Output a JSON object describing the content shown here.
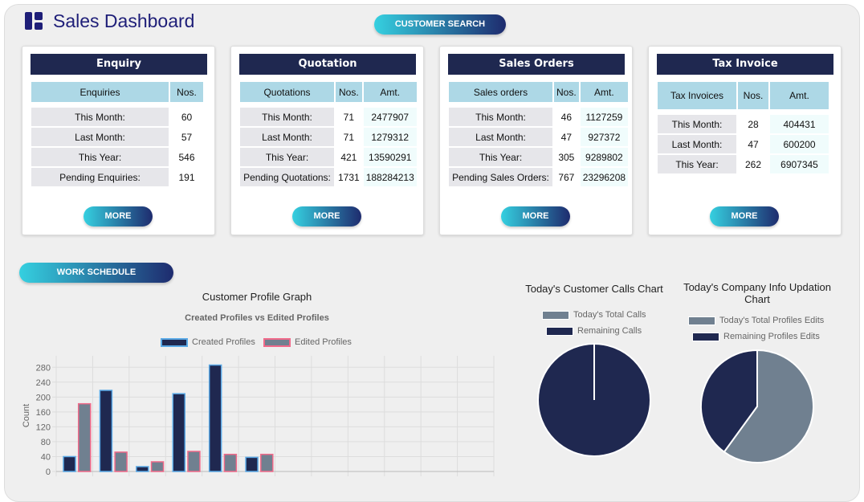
{
  "header": {
    "title": "Sales Dashboard",
    "customer_search": "CUSTOMER SEARCH",
    "icon": "dashboard-icon"
  },
  "colors": {
    "navy": "#1f2850",
    "gray": "#708090",
    "accent_from": "#35d0e0",
    "accent_to": "#1e2b6e",
    "header_cell": "#add8e6"
  },
  "cards": [
    {
      "title": "Enquiry",
      "columns": [
        "Enquiries",
        "Nos."
      ],
      "rows": [
        [
          "This Month:",
          "60"
        ],
        [
          "Last Month:",
          "57"
        ],
        [
          "This Year:",
          "546"
        ],
        [
          "Pending Enquiries:",
          "191"
        ]
      ],
      "more": "MORE"
    },
    {
      "title": "Quotation",
      "columns": [
        "Quotations",
        "Nos.",
        "Amt."
      ],
      "rows": [
        [
          "This Month:",
          "71",
          "2477907"
        ],
        [
          "Last Month:",
          "71",
          "1279312"
        ],
        [
          "This Year:",
          "421",
          "13590291"
        ],
        [
          "Pending Quotations:",
          "1731",
          "188284213"
        ]
      ],
      "more": "MORE"
    },
    {
      "title": "Sales Orders",
      "columns": [
        "Sales orders",
        "Nos.",
        "Amt."
      ],
      "rows": [
        [
          "This Month:",
          "46",
          "1127259"
        ],
        [
          "Last Month:",
          "47",
          "927372"
        ],
        [
          "This Year:",
          "305",
          "9289802"
        ],
        [
          "Pending Sales Orders:",
          "767",
          "23296208"
        ]
      ],
      "more": "MORE"
    },
    {
      "title": "Tax Invoice",
      "columns": [
        "Tax Invoices",
        "Nos.",
        "Amt."
      ],
      "rows": [
        [
          "This Month:",
          "28",
          "404431"
        ],
        [
          "Last Month:",
          "47",
          "600200"
        ],
        [
          "This Year:",
          "262",
          "6907345"
        ]
      ],
      "more": "MORE"
    }
  ],
  "work_schedule": "WORK SCHEDULE",
  "chart_data": [
    {
      "type": "bar",
      "title": "Customer Profile Graph",
      "subtitle": "Created Profiles vs Edited Profiles",
      "ylabel": "Count",
      "ylim": [
        0,
        300
      ],
      "yticks": [
        0,
        40,
        80,
        120,
        160,
        200,
        240,
        280
      ],
      "grid": true,
      "legend": "top",
      "category_count": 12,
      "series": [
        {
          "name": "Created Profiles",
          "values": [
            40,
            218,
            13,
            209,
            286,
            38
          ],
          "color": "#1f2850",
          "border": "#5aa9e6"
        },
        {
          "name": "Edited Profiles",
          "values": [
            182,
            52,
            26,
            54,
            46,
            46
          ],
          "color": "#708090",
          "border": "#f06a8a"
        }
      ]
    },
    {
      "type": "pie",
      "title": "Today's Customer Calls Chart",
      "legend": "top",
      "labels": [
        "Today's Total Calls",
        "Remaining Calls"
      ],
      "values": [
        0,
        100
      ],
      "colors": [
        "#708090",
        "#1f2850"
      ]
    },
    {
      "type": "pie",
      "title": "Today's Company Info Updation Chart",
      "legend": "top",
      "labels": [
        "Today's Total Profiles Edits",
        "Remaining Profiles Edits"
      ],
      "values": [
        60,
        40
      ],
      "colors": [
        "#708090",
        "#1f2850"
      ]
    }
  ]
}
